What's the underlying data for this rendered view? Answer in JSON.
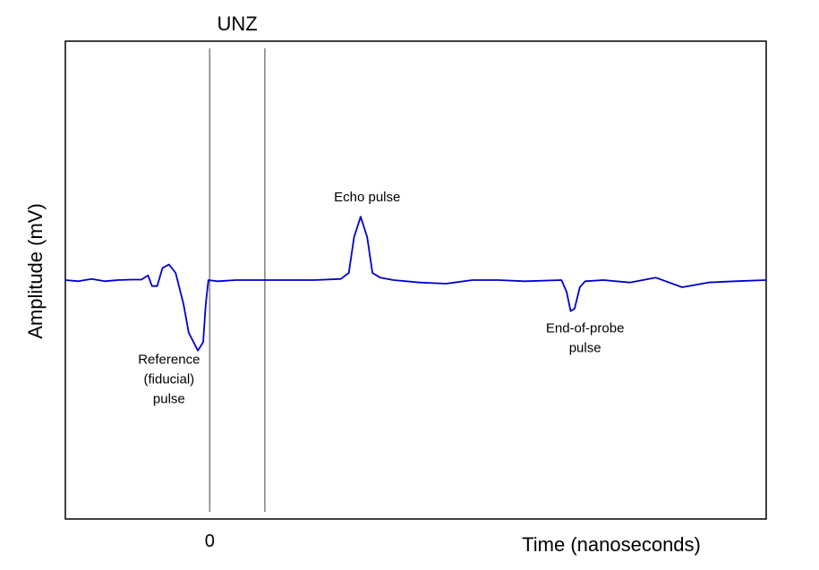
{
  "chart_data": {
    "type": "line",
    "title": "",
    "xlabel": "Time (nanoseconds)",
    "ylabel": "Amplitude (mV)",
    "x_ticks": [
      {
        "x": 0,
        "label": "0"
      }
    ],
    "xlim": [
      -5.5,
      21.2
    ],
    "ylim": [
      -10,
      10
    ],
    "grid": false,
    "legend": "none",
    "colors": {
      "signal": "#0000cc",
      "unz_lines": "#808080",
      "frame": "#000000"
    },
    "unz": {
      "label": "UNZ",
      "start": 0,
      "end": 2.1
    },
    "series": [
      {
        "values": [
          [
            -5.5,
            0.0
          ],
          [
            -5.0,
            -0.05
          ],
          [
            -4.5,
            0.05
          ],
          [
            -4.0,
            -0.05
          ],
          [
            -3.5,
            0.0
          ],
          [
            -3.0,
            0.02
          ],
          [
            -2.6,
            0.02
          ],
          [
            -2.35,
            0.2
          ],
          [
            -2.2,
            -0.25
          ],
          [
            -2.0,
            -0.25
          ],
          [
            -1.8,
            0.5
          ],
          [
            -1.55,
            0.65
          ],
          [
            -1.3,
            0.3
          ],
          [
            -1.0,
            -1.0
          ],
          [
            -0.8,
            -2.2
          ],
          [
            -0.45,
            -2.95
          ],
          [
            -0.25,
            -2.6
          ],
          [
            -0.15,
            -1.0
          ],
          [
            -0.05,
            0.0
          ],
          [
            0.3,
            -0.05
          ],
          [
            1.0,
            0.0
          ],
          [
            2.0,
            0.0
          ],
          [
            3.0,
            0.0
          ],
          [
            4.0,
            0.0
          ],
          [
            5.0,
            0.05
          ],
          [
            5.3,
            0.3
          ],
          [
            5.5,
            1.8
          ],
          [
            5.75,
            2.65
          ],
          [
            6.0,
            1.8
          ],
          [
            6.2,
            0.3
          ],
          [
            6.5,
            0.1
          ],
          [
            7.0,
            0.0
          ],
          [
            8.0,
            -0.1
          ],
          [
            9.0,
            -0.15
          ],
          [
            10.0,
            0.0
          ],
          [
            11.0,
            0.0
          ],
          [
            12.0,
            -0.05
          ],
          [
            13.4,
            0.0
          ],
          [
            13.6,
            -0.5
          ],
          [
            13.75,
            -1.3
          ],
          [
            13.9,
            -1.2
          ],
          [
            14.1,
            -0.3
          ],
          [
            14.3,
            -0.05
          ],
          [
            15.0,
            0.0
          ],
          [
            16.0,
            -0.1
          ],
          [
            17.0,
            0.1
          ],
          [
            18.0,
            -0.3
          ],
          [
            19.0,
            -0.1
          ],
          [
            20.0,
            -0.05
          ],
          [
            21.2,
            0.0
          ]
        ]
      }
    ],
    "annotations": [
      {
        "lines": [
          "Echo pulse"
        ],
        "x": 6.0,
        "y": 3.3
      },
      {
        "lines": [
          "Reference",
          "(fiducial)",
          "pulse"
        ],
        "x": -1.55,
        "y": -3.5
      },
      {
        "lines": [
          "End-of-probe",
          "pulse"
        ],
        "x": 14.3,
        "y": -2.2
      }
    ]
  }
}
